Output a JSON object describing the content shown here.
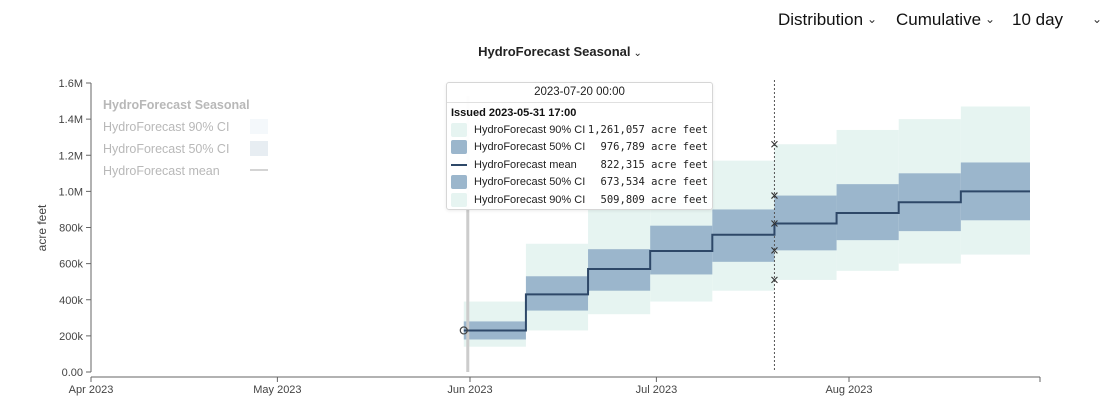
{
  "header": {
    "distribution_label": "Distribution",
    "cumulative_label": "Cumulative",
    "period_label": "10 day",
    "model_title": "HydroForecast Seasonal"
  },
  "legend": {
    "title": "HydroForecast Seasonal",
    "items": [
      {
        "label": "HydroForecast 90% CI",
        "kind": "band90"
      },
      {
        "label": "HydroForecast 50% CI",
        "kind": "band50"
      },
      {
        "label": "HydroForecast mean",
        "kind": "line"
      }
    ]
  },
  "tooltip": {
    "date": "2023-07-20 00:00",
    "issued": "Issued 2023-05-31 17:00",
    "rows": [
      {
        "label": "HydroForecast 90% CI",
        "value": "1,261,057 acre feet",
        "kind": "band90"
      },
      {
        "label": "HydroForecast 50% CI",
        "value": "976,789 acre feet",
        "kind": "band50"
      },
      {
        "label": "HydroForecast mean",
        "value": "822,315 acre feet",
        "kind": "line"
      },
      {
        "label": "HydroForecast 50% CI",
        "value": "673,534 acre feet",
        "kind": "band50"
      },
      {
        "label": "HydroForecast 90% CI",
        "value": "509,809 acre feet",
        "kind": "band90"
      }
    ]
  },
  "colors": {
    "band90": "#e6f4f1",
    "band50": "#9bb6cc",
    "mean": "#2e4868",
    "issue_line": "#cccccc",
    "hover_line": "#555555",
    "axis": "#666666"
  },
  "chart_data": {
    "type": "area",
    "ylabel": "acre feet",
    "ylim": [
      0,
      1600000
    ],
    "yticks": [
      0,
      200000,
      400000,
      600000,
      800000,
      1000000,
      1200000,
      1400000,
      1600000
    ],
    "ytick_labels": [
      "0.00",
      "200k",
      "400k",
      "600k",
      "800k",
      "1.0M",
      "1.2M",
      "1.4M",
      "1.6M"
    ],
    "xlim": [
      "2023-04-01",
      "2023-08-31"
    ],
    "xticks": [
      "2023-04-01",
      "2023-05-01",
      "2023-06-01",
      "2023-07-01",
      "2023-08-01"
    ],
    "xtick_labels": [
      "Apr 2023",
      "May 2023",
      "Jun 2023",
      "Jul 2023",
      "Aug 2023"
    ],
    "issue_date": "2023-05-31",
    "hover_date": "2023-07-20",
    "start": {
      "x": "2023-05-31",
      "y": 230000
    },
    "steps": [
      {
        "start": "2023-05-31",
        "end": "2023-06-10",
        "p05": 140000,
        "p25": 180000,
        "mean": 230000,
        "p75": 280000,
        "p95": 390000
      },
      {
        "start": "2023-06-10",
        "end": "2023-06-20",
        "p05": 230000,
        "p25": 340000,
        "mean": 430000,
        "p75": 530000,
        "p95": 710000
      },
      {
        "start": "2023-06-20",
        "end": "2023-06-30",
        "p05": 320000,
        "p25": 450000,
        "mean": 570000,
        "p75": 680000,
        "p95": 920000
      },
      {
        "start": "2023-06-30",
        "end": "2023-07-10",
        "p05": 390000,
        "p25": 540000,
        "mean": 670000,
        "p75": 810000,
        "p95": 1030000
      },
      {
        "start": "2023-07-10",
        "end": "2023-07-20",
        "p05": 450000,
        "p25": 610000,
        "mean": 760000,
        "p75": 900000,
        "p95": 1170000
      },
      {
        "start": "2023-07-20",
        "end": "2023-07-30",
        "p05": 509809,
        "p25": 673534,
        "mean": 822315,
        "p75": 976789,
        "p95": 1261057
      },
      {
        "start": "2023-07-30",
        "end": "2023-08-09",
        "p05": 560000,
        "p25": 730000,
        "mean": 880000,
        "p75": 1040000,
        "p95": 1340000
      },
      {
        "start": "2023-08-09",
        "end": "2023-08-19",
        "p05": 600000,
        "p25": 780000,
        "mean": 940000,
        "p75": 1100000,
        "p95": 1400000
      },
      {
        "start": "2023-08-19",
        "end": "2023-08-31",
        "p05": 650000,
        "p25": 840000,
        "mean": 1000000,
        "p75": 1160000,
        "p95": 1470000
      }
    ],
    "series": [
      {
        "name": "HydroForecast 90% CI"
      },
      {
        "name": "HydroForecast 50% CI"
      },
      {
        "name": "HydroForecast mean"
      }
    ]
  }
}
